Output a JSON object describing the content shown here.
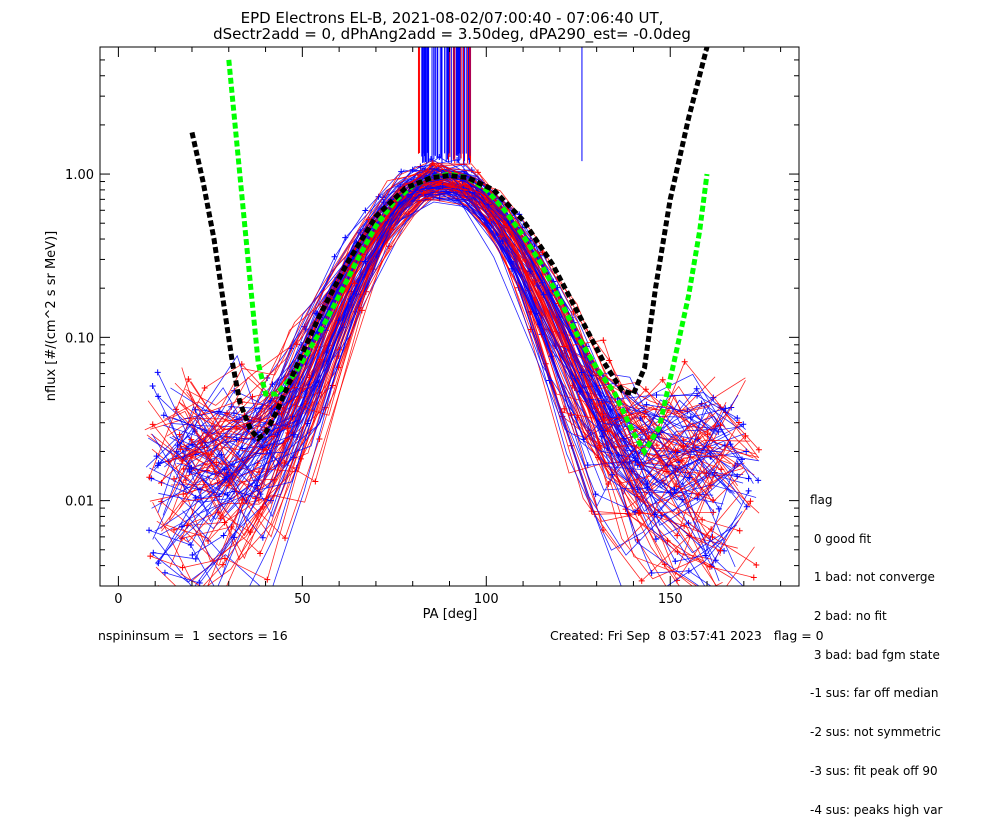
{
  "chart_data": {
    "type": "line",
    "title_lines": [
      "EPD Electrons EL-B, 2021-08-02/07:00:40 - 07:06:40 UT,",
      "dSectr2add = 0, dPhAng2add = 3.50deg, dPA290_est=  -0.0deg"
    ],
    "xlabel": "PA [deg]",
    "ylabel": "nflux [#/(cm^2 s sr MeV)]",
    "xlim": [
      -5,
      185
    ],
    "ylim": [
      0.003,
      6
    ],
    "yscale": "log",
    "x_ticks": [
      0,
      50,
      100,
      150
    ],
    "x_tick_labels": [
      "0",
      "50",
      "100",
      "150"
    ],
    "y_ticks": [
      0.01,
      0.1,
      1.0
    ],
    "y_tick_labels": [
      "0.01",
      "0.10",
      "1.00"
    ],
    "series": [
      {
        "color": "#00ff00",
        "style": "dashed",
        "x": [
          30,
          33,
          36,
          38,
          40,
          43,
          48,
          55,
          60,
          65,
          70,
          75,
          80,
          85,
          90,
          95,
          100,
          105,
          110,
          115,
          120,
          125,
          130,
          135,
          140,
          143,
          147,
          151,
          155,
          158,
          160
        ],
        "y": [
          5.0,
          1.0,
          0.2,
          0.07,
          0.045,
          0.045,
          0.06,
          0.11,
          0.18,
          0.3,
          0.48,
          0.68,
          0.85,
          0.95,
          1.0,
          0.95,
          0.8,
          0.6,
          0.42,
          0.28,
          0.17,
          0.1,
          0.065,
          0.045,
          0.026,
          0.02,
          0.028,
          0.07,
          0.18,
          0.45,
          1.0
        ]
      },
      {
        "color": "#000000",
        "style": "dashed",
        "x": [
          20,
          23,
          26,
          29,
          31,
          33,
          36,
          38,
          40,
          43,
          46,
          50,
          55,
          62,
          70,
          78,
          85,
          90,
          95,
          102,
          110,
          118,
          125,
          132,
          137,
          140,
          143,
          146,
          150,
          155,
          160
        ],
        "y": [
          1.8,
          0.9,
          0.4,
          0.14,
          0.07,
          0.04,
          0.027,
          0.024,
          0.026,
          0.035,
          0.05,
          0.08,
          0.14,
          0.28,
          0.55,
          0.82,
          0.95,
          0.98,
          0.95,
          0.8,
          0.52,
          0.28,
          0.14,
          0.07,
          0.047,
          0.045,
          0.065,
          0.2,
          0.7,
          2.2,
          6.0
        ]
      }
    ],
    "observation_colors": [
      "#ff0000",
      "#0000ff"
    ],
    "legend_title": "flag",
    "legend_items": [
      " 0 good fit",
      " 1 bad: not converge",
      " 2 bad: no fit",
      " 3 bad: bad fgm state",
      "-1 sus: far off median",
      "-2 sus: not symmetric",
      "-3 sus: fit peak off 90",
      "-4 sus: peaks high var"
    ],
    "footer_left": "nspininsum =  1  sectors = 16",
    "footer_right": "Created: Fri Sep  8 03:57:41 2023   flag = 0"
  }
}
